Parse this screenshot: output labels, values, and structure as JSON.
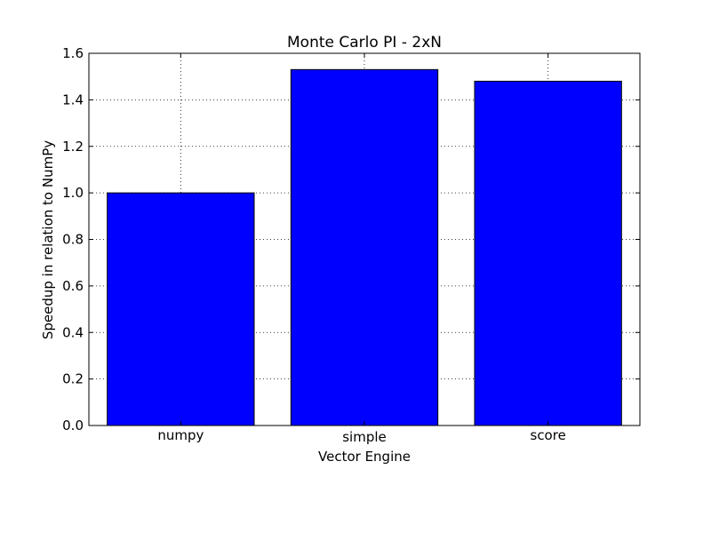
{
  "chart_data": {
    "type": "bar",
    "title": "Monte Carlo PI - 2xN",
    "xlabel": "Vector Engine",
    "ylabel": "Speedup in relation to NumPy",
    "categories": [
      "numpy",
      "simple",
      "score"
    ],
    "values": [
      1.0,
      1.53,
      1.48
    ],
    "ylim": [
      0,
      1.6
    ],
    "yticks": [
      0.0,
      0.2,
      0.4,
      0.6,
      0.8,
      1.0,
      1.2,
      1.4,
      1.6
    ],
    "ytick_labels": [
      "0.0",
      "0.2",
      "0.4",
      "0.6",
      "0.8",
      "1.0",
      "1.2",
      "1.4",
      "1.6"
    ],
    "grid": true,
    "bar_color": "#0000ff"
  }
}
